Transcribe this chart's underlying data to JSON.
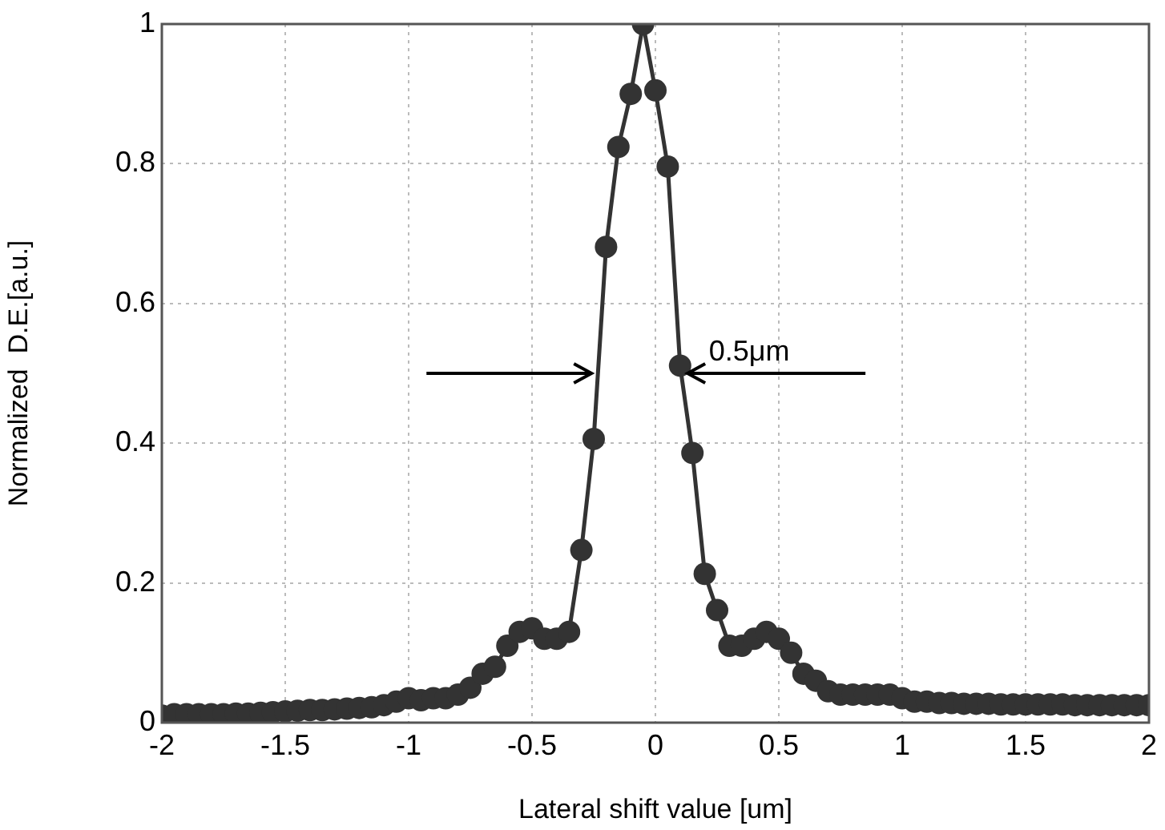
{
  "chart_data": {
    "type": "line",
    "xlabel": "Lateral shift value [um]",
    "ylabel": "Normalized  D.E.[a.u.]",
    "x": [
      -2,
      -1.95,
      -1.9,
      -1.85,
      -1.8,
      -1.75,
      -1.7,
      -1.65,
      -1.6,
      -1.55,
      -1.5,
      -1.45,
      -1.4,
      -1.35,
      -1.3,
      -1.25,
      -1.2,
      -1.15,
      -1.1,
      -1.05,
      -1,
      -0.95,
      -0.9,
      -0.85,
      -0.8,
      -0.75,
      -0.7,
      -0.65,
      -0.6,
      -0.55,
      -0.5,
      -0.45,
      -0.4,
      -0.35,
      -0.3,
      -0.25,
      -0.2,
      -0.15,
      -0.1,
      -0.05,
      0,
      0.05,
      0.1,
      0.15,
      0.2,
      0.25,
      0.3,
      0.35,
      0.4,
      0.45,
      0.5,
      0.55,
      0.6,
      0.65,
      0.7,
      0.75,
      0.8,
      0.85,
      0.9,
      0.95,
      1,
      1.05,
      1.1,
      1.15,
      1.2,
      1.25,
      1.3,
      1.35,
      1.4,
      1.45,
      1.5,
      1.55,
      1.6,
      1.65,
      1.7,
      1.75,
      1.8,
      1.85,
      1.9,
      1.95,
      2
    ],
    "series": [
      {
        "color": "#333333",
        "values": [
          0.01,
          0.012,
          0.012,
          0.012,
          0.012,
          0.012,
          0.013,
          0.013,
          0.014,
          0.015,
          0.016,
          0.017,
          0.018,
          0.018,
          0.019,
          0.02,
          0.021,
          0.022,
          0.025,
          0.03,
          0.035,
          0.032,
          0.035,
          0.035,
          0.04,
          0.05,
          0.07,
          0.08,
          0.11,
          0.13,
          0.135,
          0.12,
          0.12,
          0.13,
          0.247,
          0.406,
          0.681,
          0.824,
          0.9,
          1.0,
          0.905,
          0.796,
          0.511,
          0.386,
          0.213,
          0.161,
          0.11,
          0.11,
          0.12,
          0.13,
          0.12,
          0.1,
          0.07,
          0.06,
          0.045,
          0.04,
          0.04,
          0.04,
          0.04,
          0.04,
          0.035,
          0.03,
          0.03,
          0.028,
          0.028,
          0.027,
          0.027,
          0.027,
          0.026,
          0.026,
          0.026,
          0.026,
          0.026,
          0.026,
          0.025,
          0.025,
          0.025,
          0.025,
          0.025,
          0.025,
          0.025
        ]
      }
    ],
    "xlim": [
      -2,
      2
    ],
    "xticks": [
      -2,
      -1.5,
      -1,
      -0.5,
      0,
      0.5,
      1,
      1.5,
      2
    ],
    "ylim": [
      0,
      1
    ],
    "yticks": [
      0,
      0.2,
      0.4,
      0.6,
      0.8,
      1
    ],
    "grid": true,
    "legend": false,
    "marker": "circle",
    "line_style": "solid",
    "annotations": [
      {
        "text": "0.5μm",
        "x": 0.1,
        "y": 0.5
      }
    ]
  }
}
